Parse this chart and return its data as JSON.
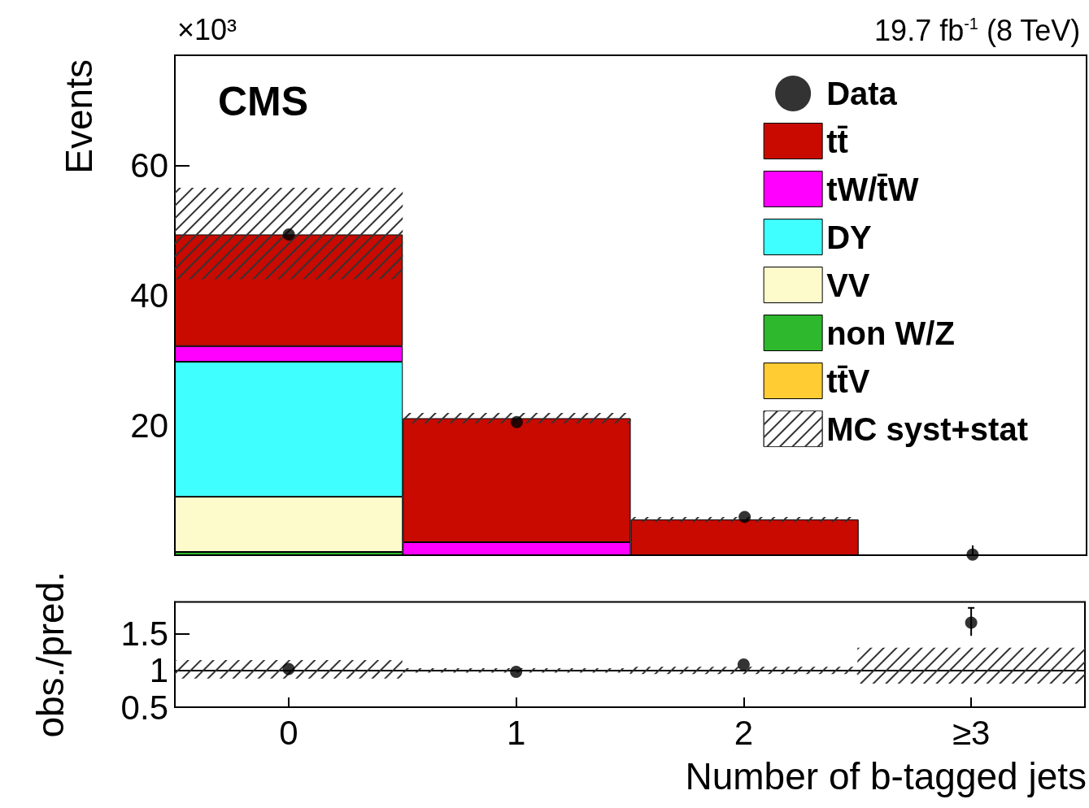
{
  "chart_data": [
    {
      "type": "bar",
      "title": "19.7 fb$^{-1}$ (8 TeV)",
      "ylabel": "Events",
      "annotations": [
        "CMS",
        "×10³"
      ],
      "categories": [
        "0",
        "1",
        "2",
        "≥3"
      ],
      "ylim": [
        0,
        77
      ],
      "yticks": [
        20,
        40,
        60
      ],
      "tick_labels": "y",
      "legend": "top right",
      "marker": "circle",
      "series": [
        {
          "name": "tt̄",
          "color": "#c80a00",
          "base": [
            32.2,
            2.0,
            0,
            null
          ],
          "values": [
            17.2,
            19.1,
            5.5,
            null
          ]
        },
        {
          "name": "tW/t̄W",
          "color": "#ff00ff",
          "base": [
            29.8,
            0,
            null,
            null
          ],
          "values": [
            2.4,
            2.0,
            null,
            null
          ]
        },
        {
          "name": "DY",
          "color": "#40ffff",
          "base": [
            9.0,
            null,
            null,
            null
          ],
          "values": [
            20.8,
            null,
            null,
            null
          ]
        },
        {
          "name": "VV",
          "color": "#fdfbcc",
          "base": [
            0.5,
            null,
            null,
            null
          ],
          "values": [
            8.5,
            null,
            null,
            null
          ]
        },
        {
          "name": "non W/Z",
          "color": "#2db82d",
          "base": [
            0,
            null,
            null,
            null
          ],
          "values": [
            0.5,
            null,
            null,
            null
          ]
        },
        {
          "name": "tt̄V",
          "color": "#ffcc33",
          "base": [
            null,
            null,
            null,
            null
          ],
          "values": [
            null,
            null,
            null,
            null
          ]
        },
        {
          "name": "Data",
          "type": "scatter",
          "color": "#000000",
          "x": [
            "0",
            "1",
            "2",
            "≥3"
          ],
          "values": [
            49.4,
            20.5,
            5.9,
            0.1
          ]
        },
        {
          "name": "MC syst+stat",
          "color": "#333333",
          "base": [
            42.5,
            20.3,
            5.1,
            null
          ],
          "values": [
            14.1,
            1.6,
            0.8,
            null
          ]
        }
      ]
    },
    {
      "type": "scatter",
      "xlabel": "Number of b-tagged jets",
      "ylabel": "obs./pred.",
      "categories": [
        "0",
        "1",
        "2",
        "≥3"
      ],
      "ylim": [
        0.5,
        1.93
      ],
      "yticks": [
        0.5,
        1,
        1.5
      ],
      "marker": "circle",
      "ref_lines": [
        {
          "axis": "y",
          "value": 1,
          "color": "#000000"
        }
      ],
      "series": [
        {
          "color": "#000000",
          "x": [
            "0",
            "1",
            "2",
            "≥3"
          ],
          "values": [
            1.02,
            0.98,
            1.08,
            1.65
          ],
          "errors": [
            null,
            null,
            null,
            [
              1.47,
              1.85
            ]
          ]
        },
        {
          "type": "bar",
          "color": "#333333",
          "base": [
            0.89,
            0.97,
            0.95,
            0.82
          ],
          "values": [
            0.25,
            0.06,
            0.1,
            0.49
          ]
        }
      ]
    }
  ]
}
